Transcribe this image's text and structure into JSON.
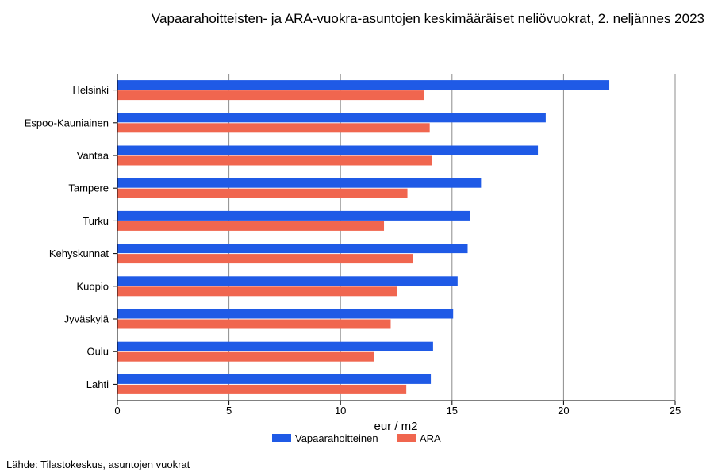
{
  "chart_data": {
    "type": "bar",
    "orientation": "horizontal",
    "title": "Vapaarahoitteisten- ja ARA-vuokra-asuntojen keskimääräiset neliövuokrat, 2. neljännes 2023",
    "xlabel": "eur / m2",
    "ylabel": "",
    "xlim": [
      0,
      25
    ],
    "xticks": [
      "0",
      "5",
      "10",
      "15",
      "20",
      "25"
    ],
    "grid": true,
    "legend_position": "bottom",
    "categories": [
      "Helsinki",
      "Espoo-Kauniainen",
      "Vantaa",
      "Tampere",
      "Turku",
      "Kehyskunnat",
      "Kuopio",
      "Jyväskylä",
      "Oulu",
      "Lahti"
    ],
    "series": [
      {
        "name": "Vapaarahoitteinen",
        "color": "#1f5ae6",
        "values": [
          22.05,
          19.2,
          18.85,
          16.3,
          15.8,
          15.7,
          15.25,
          15.05,
          14.15,
          14.05
        ]
      },
      {
        "name": "ARA",
        "color": "#f0664f",
        "values": [
          13.75,
          14.0,
          14.1,
          13.0,
          11.95,
          13.25,
          12.55,
          12.25,
          11.5,
          12.95
        ]
      }
    ]
  },
  "source": "Lähde: Tilastokeskus, asuntojen vuokrat"
}
